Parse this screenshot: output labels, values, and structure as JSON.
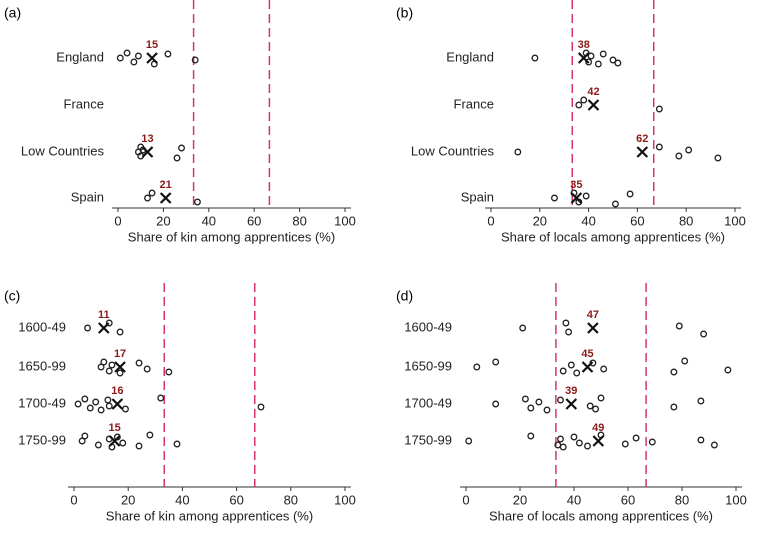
{
  "chart_data": [
    {
      "type": "scatter",
      "panel": "(a)",
      "xlabel": "Share of kin among apprentices (%)",
      "categories": [
        "England",
        "France",
        "Low Countries",
        "Spain"
      ],
      "points": [
        [
          1,
          4,
          7,
          9,
          16,
          22,
          34
        ],
        [],
        [
          9,
          10,
          10,
          11,
          26,
          28
        ],
        [
          13,
          15,
          35
        ]
      ],
      "means": [
        15,
        null,
        13,
        21
      ],
      "reference_lines": [
        33.3,
        66.7
      ],
      "xlim": [
        0,
        100
      ],
      "xticks": [
        0,
        20,
        40,
        60,
        80,
        100
      ]
    },
    {
      "type": "scatter",
      "panel": "(b)",
      "xlabel": "Share of locals among apprentices (%)",
      "categories": [
        "England",
        "France",
        "Low Countries",
        "Spain"
      ],
      "points": [
        [
          18,
          39,
          40,
          41,
          44,
          46,
          50,
          52
        ],
        [
          36,
          38,
          69
        ],
        [
          11,
          69,
          77,
          81,
          93
        ],
        [
          26,
          34,
          36,
          39,
          51,
          57
        ]
      ],
      "means": [
        38,
        42,
        62,
        35
      ],
      "reference_lines": [
        33.3,
        66.7
      ],
      "xlim": [
        0,
        100
      ],
      "xticks": [
        0,
        20,
        40,
        60,
        80,
        100
      ]
    },
    {
      "type": "scatter",
      "panel": "(c)",
      "xlabel": "Share of kin among apprentices (%)",
      "categories": [
        "1600-49",
        "1650-99",
        "1700-49",
        "1750-99"
      ],
      "points": [
        [
          5,
          13,
          17
        ],
        [
          10,
          11,
          13,
          14,
          17,
          24,
          27,
          35
        ],
        [
          1.5,
          4,
          6,
          8,
          10,
          12.5,
          13,
          19,
          32,
          69
        ],
        [
          3,
          4,
          9,
          13,
          14,
          16,
          18,
          24,
          28,
          38
        ]
      ],
      "means": [
        11,
        17,
        16,
        15
      ],
      "reference_lines": [
        33.3,
        66.7
      ],
      "xlim": [
        0,
        100
      ],
      "xticks": [
        0,
        20,
        40,
        60,
        80,
        100
      ]
    },
    {
      "type": "scatter",
      "panel": "(d)",
      "xlabel": "Share of locals among apprentices (%)",
      "categories": [
        "1600-49",
        "1650-99",
        "1700-49",
        "1750-99"
      ],
      "points": [
        [
          21,
          37,
          38,
          79,
          88
        ],
        [
          4,
          11,
          36,
          39,
          41,
          47,
          51,
          77,
          81,
          97
        ],
        [
          11,
          22,
          24,
          27,
          30,
          35,
          46,
          48,
          50,
          77,
          87
        ],
        [
          1,
          24,
          34,
          35,
          36,
          40,
          42,
          45,
          50,
          59,
          63,
          69,
          87,
          92
        ]
      ],
      "means": [
        47,
        45,
        39,
        49
      ],
      "reference_lines": [
        33.3,
        66.7
      ],
      "xlim": [
        0,
        100
      ],
      "xticks": [
        0,
        20,
        40,
        60,
        80,
        100
      ]
    }
  ]
}
